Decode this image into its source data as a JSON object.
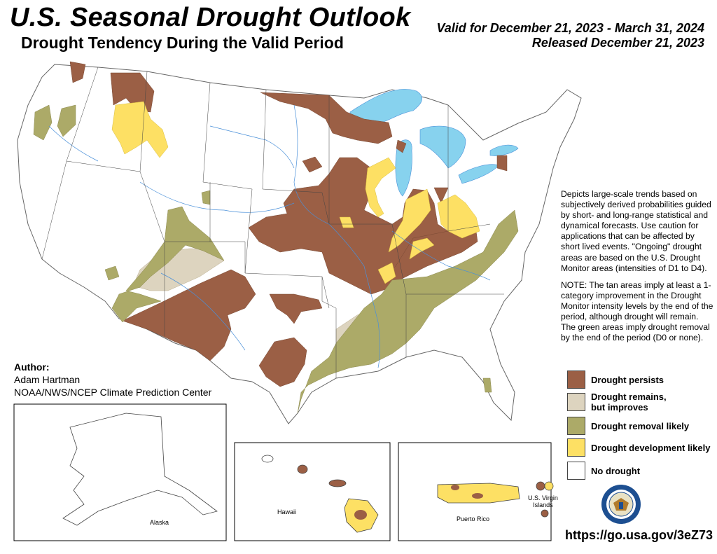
{
  "header": {
    "title": "U.S. Seasonal Drought Outlook",
    "subtitle": "Drought Tendency During the Valid Period",
    "valid_line": "Valid for December 21, 2023 - March 31, 2024",
    "released_line": "Released December 21, 2023"
  },
  "description": {
    "paragraph1": "Depicts large-scale trends based on subjectively derived probabilities guided by short- and long-range statistical and dynamical forecasts. Use caution for applications that can be affected by short lived events. \"Ongoing\" drought areas are based on the U.S. Drought Monitor areas (intensities of D1 to D4).",
    "paragraph2": "NOTE: The tan areas imply at least a 1-category improvement in the Drought Monitor intensity levels by the end of the period, although drought will remain. The green areas imply drought removal by the end of the period (D0 or none)."
  },
  "legend": [
    {
      "label_line1": "Drought persists",
      "label_line2": "",
      "color": "#9b5f45"
    },
    {
      "label_line1": "Drought remains,",
      "label_line2": "but improves",
      "color": "#ddd4bf"
    },
    {
      "label_line1": "Drought removal likely",
      "label_line2": "",
      "color": "#acaa68"
    },
    {
      "label_line1": "Drought development likely",
      "label_line2": "",
      "color": "#fde064"
    },
    {
      "label_line1": "No drought",
      "label_line2": "",
      "color": "#ffffff"
    }
  ],
  "author": {
    "label": "Author:",
    "name": "Adam Hartman",
    "org": "NOAA/NWS/NCEP Climate Prediction Center"
  },
  "insets": {
    "alaska": "Alaska",
    "hawaii": "Hawaii",
    "puerto_rico": "Puerto Rico",
    "virgin_islands_line1": "U.S. Virgin",
    "virgin_islands_line2": "Islands"
  },
  "url": "https://go.usa.gov/3eZ73",
  "colors": {
    "persists": "#9b5f45",
    "improves": "#ddd4bf",
    "removal": "#acaa68",
    "development": "#fde064",
    "water": "#87d2ee",
    "rivers": "#4a90d9"
  },
  "seal_icon": "department-of-commerce-seal-icon"
}
